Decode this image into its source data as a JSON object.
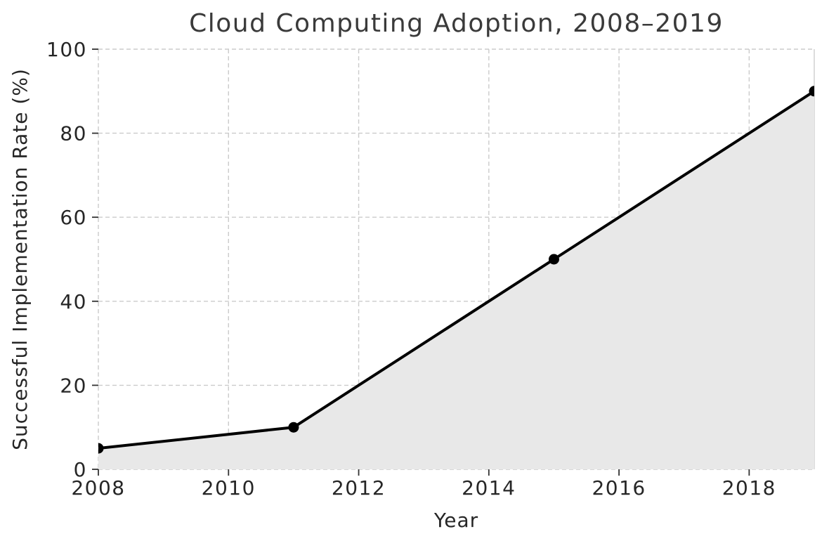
{
  "chart_data": {
    "type": "line",
    "title": "Cloud Computing Adoption, 2008–2019",
    "xlabel": "Year",
    "ylabel": "Successful Implementation Rate (%)",
    "x": [
      2008,
      2011,
      2015,
      2019
    ],
    "y": [
      5,
      10,
      50,
      90
    ],
    "xlim": [
      2008,
      2019
    ],
    "ylim": [
      0,
      100
    ],
    "xticks": [
      2008,
      2010,
      2012,
      2014,
      2016,
      2018
    ],
    "yticks": [
      0,
      20,
      40,
      60,
      80,
      100
    ],
    "grid": true,
    "grid_style": "dashed",
    "area_fill": true,
    "marker": "circle",
    "legend": "none",
    "colors": {
      "line": "#000000",
      "marker": "#000000",
      "fill": "#e8e8e8",
      "grid": "#cbcbcb",
      "tick": "#333333",
      "tick_label": "#262626",
      "title": "#3a3a3a",
      "spine": "#d4d4d4",
      "background": "#ffffff"
    }
  }
}
